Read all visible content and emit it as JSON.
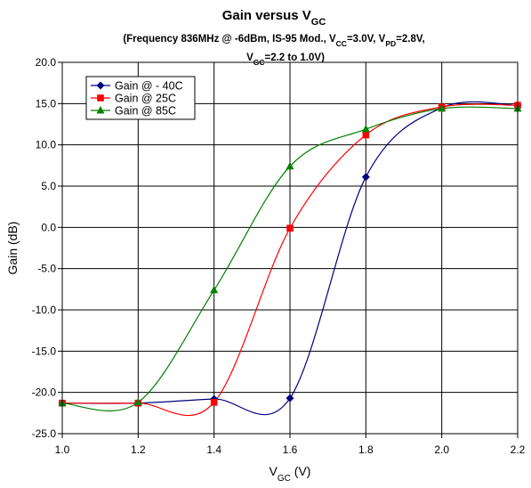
{
  "chart_data": {
    "type": "line",
    "title": {
      "main": "Gain versus V",
      "main_sub": "GC"
    },
    "subtitle": {
      "line1": [
        {
          "t": "(Frequency 836MHz @ -6dBm, IS-95 Mod., V"
        },
        {
          "t": "CC",
          "sub": true
        },
        {
          "t": "=3.0V, V"
        },
        {
          "t": "PD",
          "sub": true
        },
        {
          "t": "=2.8V,"
        }
      ],
      "line2": [
        {
          "t": "V"
        },
        {
          "t": "GC",
          "sub": true
        },
        {
          "t": "=2.2 to 1.0V)"
        }
      ]
    },
    "xlabel": {
      "main": "V",
      "sub": "GC",
      "rest": " (V)"
    },
    "ylabel": "Gain (dB)",
    "xlim": [
      1.0,
      2.2
    ],
    "ylim": [
      -25.0,
      20.0
    ],
    "xticks": [
      "1.0",
      "1.2",
      "1.4",
      "1.6",
      "1.8",
      "2.0",
      "2.2"
    ],
    "yticks": [
      "20.0",
      "15.0",
      "10.0",
      "5.0",
      "0.0",
      "-5.0",
      "-10.0",
      "-15.0",
      "-20.0",
      "-25.0"
    ],
    "grid": true,
    "legend_position": "top-left",
    "series": [
      {
        "name": "Gain @ - 40C",
        "color": "#000080",
        "marker": "diamond",
        "x": [
          1.0,
          1.2,
          1.4,
          1.6,
          1.8,
          2.0,
          2.2
        ],
        "y": [
          -21.3,
          -21.3,
          -20.8,
          -20.7,
          6.1,
          14.5,
          14.8
        ]
      },
      {
        "name": "Gain @ 25C",
        "color": "#ff0000",
        "marker": "square",
        "x": [
          1.0,
          1.2,
          1.4,
          1.6,
          1.8,
          2.0,
          2.2
        ],
        "y": [
          -21.3,
          -21.3,
          -21.2,
          -0.1,
          11.2,
          14.6,
          14.8
        ]
      },
      {
        "name": "Gain @ 85C",
        "color": "#008000",
        "marker": "triangle",
        "x": [
          1.0,
          1.2,
          1.4,
          1.6,
          1.8,
          2.0,
          2.2
        ],
        "y": [
          -21.3,
          -21.2,
          -7.6,
          7.4,
          11.9,
          14.4,
          14.4
        ]
      }
    ]
  }
}
